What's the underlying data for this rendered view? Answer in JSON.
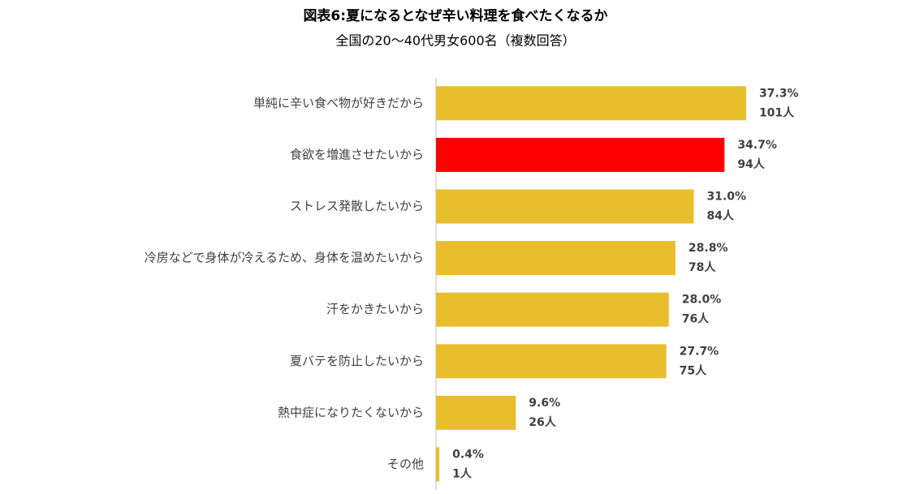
{
  "chart_data": {
    "type": "bar",
    "orientation": "horizontal",
    "title": "図表6:夏になるとなぜ辛い料理を食べたくなるか",
    "subtitle": "全国の20～40代男女600名（複数回答）",
    "categories": [
      "単純に辛い食べ物が好きだから",
      "食欲を増進させたいから",
      "ストレス発散したいから",
      "冷房などで身体が冷えるため、身体を温めたいから",
      "汗をかきたいから",
      "夏バテを防止したいから",
      "熱中症になりたくないから",
      "その他"
    ],
    "values": [
      37.3,
      34.7,
      31.0,
      28.8,
      28.0,
      27.7,
      9.6,
      0.4
    ],
    "value_labels": [
      "37.3%",
      "34.7%",
      "31.0%",
      "28.8%",
      "28.0%",
      "27.7%",
      "9.6%",
      "0.4%"
    ],
    "counts": [
      101,
      94,
      84,
      78,
      76,
      75,
      26,
      1
    ],
    "count_labels": [
      "101人",
      "94人",
      "84人",
      "78人",
      "76人",
      "75人",
      "26人",
      "1人"
    ],
    "colors": [
      "#e8be2e",
      "#ff0000",
      "#e8be2e",
      "#e8be2e",
      "#e8be2e",
      "#e8be2e",
      "#e8be2e",
      "#e8be2e"
    ]
  }
}
